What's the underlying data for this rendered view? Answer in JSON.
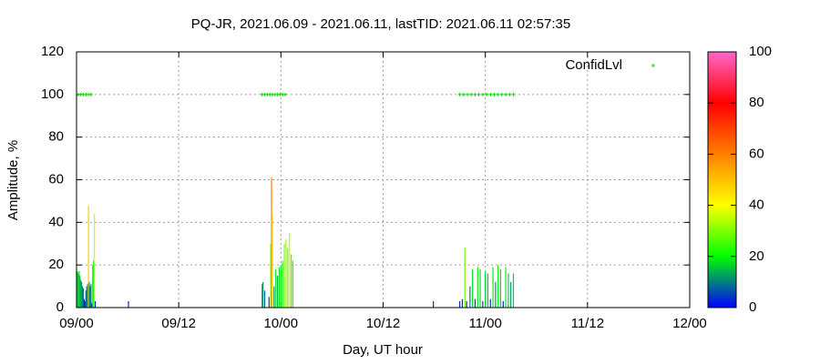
{
  "chart_data": {
    "type": "impulse",
    "title": "PQ-JR, 2021.06.09 - 2021.06.11, lastTID: 2021.06.11 02:57:35",
    "x_label": "Day, UT hour",
    "y_label": "Amplitude, %",
    "xlim": [
      0,
      72
    ],
    "xticks": [
      {
        "value": 0,
        "label": "09/00"
      },
      {
        "value": 12,
        "label": "09/12"
      },
      {
        "value": 24,
        "label": "10/00"
      },
      {
        "value": 36,
        "label": "10/12"
      },
      {
        "value": 48,
        "label": "11/00"
      },
      {
        "value": 60,
        "label": "11/12"
      },
      {
        "value": 72,
        "label": "12/00"
      }
    ],
    "ylim": [
      0,
      120
    ],
    "yticks": [
      0,
      20,
      40,
      60,
      80,
      100,
      120
    ],
    "cblim": [
      0,
      100
    ],
    "cbticks": [
      0,
      20,
      40,
      60,
      80,
      100
    ],
    "palette": [
      "#0000ff",
      "#00ff00",
      "#ffff00",
      "#ff8000",
      "#ff0000",
      "#ff66cc"
    ],
    "grid": true,
    "legend": "top-right",
    "series": [
      {
        "type": "impulse",
        "color_by": "palette",
        "x": [
          0.1,
          0.2,
          0.3,
          0.4,
          0.5,
          0.6,
          0.7,
          0.8,
          0.9,
          1.0,
          1.1,
          1.2,
          1.3,
          1.4,
          1.5,
          1.6,
          1.7,
          1.8,
          1.9,
          2.0,
          2.1,
          2.2,
          6.1,
          21.8,
          21.9,
          22.1,
          22.6,
          22.8,
          22.9,
          23.0,
          23.2,
          23.4,
          23.6,
          23.8,
          24.0,
          24.2,
          24.4,
          24.6,
          24.8,
          25.0,
          25.2,
          25.4,
          41.9,
          45.0,
          45.3,
          45.6,
          45.8,
          46.2,
          46.5,
          46.8,
          47.1,
          47.4,
          47.7,
          48.0,
          48.3,
          48.6,
          48.9,
          49.2,
          49.5,
          49.8,
          50.1,
          50.4,
          50.7,
          51.0,
          51.3
        ],
        "values": [
          17,
          16,
          17,
          15,
          13,
          12,
          10,
          9,
          4,
          3,
          8,
          10,
          11,
          48,
          12,
          10,
          11,
          2,
          20,
          22,
          44,
          3,
          3,
          11,
          12,
          8,
          5,
          30,
          61,
          44,
          10,
          18,
          15,
          19,
          20,
          22,
          30,
          32,
          28,
          35,
          25,
          22,
          3,
          3,
          4,
          28,
          3,
          10,
          18,
          4,
          19,
          18,
          3,
          17,
          16,
          4,
          19,
          12,
          20,
          18,
          3,
          19,
          16,
          12,
          16
        ]
      },
      {
        "type": "points",
        "name": "ConfidLvl",
        "color": "#00dd00",
        "x": [
          0.2,
          0.5,
          0.8,
          1.1,
          1.4,
          1.7,
          21.8,
          22.1,
          22.4,
          22.7,
          23.0,
          23.3,
          23.6,
          23.9,
          24.2,
          24.5,
          45.0,
          45.45,
          45.9,
          46.35,
          46.8,
          47.25,
          47.7,
          48.15,
          48.6,
          49.05,
          49.5,
          49.95,
          50.4,
          50.85,
          51.3
        ],
        "values": [
          100,
          100,
          100,
          100,
          100,
          100,
          100,
          100,
          100,
          100,
          100,
          100,
          100,
          100,
          100,
          100,
          100,
          100,
          100,
          100,
          100,
          100,
          100,
          100,
          100,
          100,
          100,
          100,
          100,
          100,
          100
        ]
      }
    ]
  }
}
